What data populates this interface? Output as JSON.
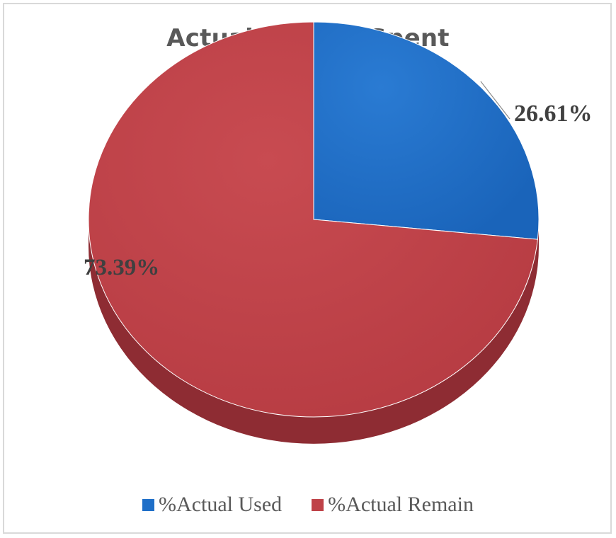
{
  "chart_data": {
    "type": "pie",
    "title": "Actual Budget Spent",
    "categories": [
      "%Actual Used",
      "%Actual Remain"
    ],
    "values": [
      26.61,
      73.39
    ],
    "data_labels": [
      "26.61%",
      "73.39%"
    ],
    "colors": [
      "#1f6fc8",
      "#bf4248"
    ],
    "legend_position": "bottom",
    "style": "3d-pie"
  }
}
